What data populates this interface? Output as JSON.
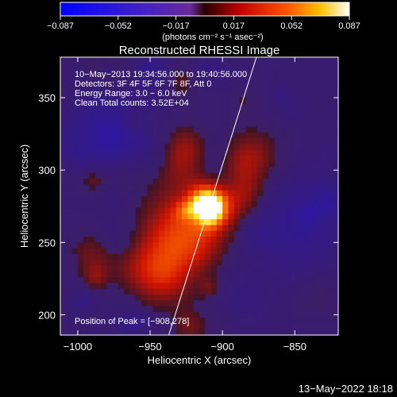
{
  "colorbar": {
    "ticks": [
      "−0.087",
      "−0.052",
      "−0.017",
      "0.017",
      "0.052",
      "0.087"
    ],
    "unit_label": "(photons cm⁻² s⁻¹ asec⁻²)"
  },
  "chart_data": {
    "type": "heatmap",
    "title": "Reconstructed RHESSI Image",
    "xlabel": "Heliocentric X (arcsec)",
    "ylabel": "Heliocentric Y (arcsec)",
    "xlim": [
      -1012,
      -820
    ],
    "ylim": [
      186,
      378
    ],
    "xticks": [
      -1000,
      -950,
      -900,
      -850
    ],
    "xtick_labels": [
      "−1000",
      "−950",
      "−900",
      "−850"
    ],
    "yticks": [
      200,
      250,
      300,
      350
    ],
    "ytick_labels": [
      "200",
      "250",
      "300",
      "350"
    ],
    "value_range": [
      -0.087,
      0.087
    ],
    "colormap": "blue-purple-red-yellow-white",
    "peak": [
      -908,
      278
    ],
    "annotations": [
      "10−May−2013 19:34:56.000 to 19:40:56.000",
      "Detectors: 3F 4F 5F 6F 7F 8F, Att 0",
      "Energy Range: 3.0 − 6.0 keV",
      "Clean     Total counts: 3.52E+04"
    ],
    "peak_label": "Position of Peak = [−908,278]"
  },
  "footer_timestamp": "13−May−2022 18:18"
}
